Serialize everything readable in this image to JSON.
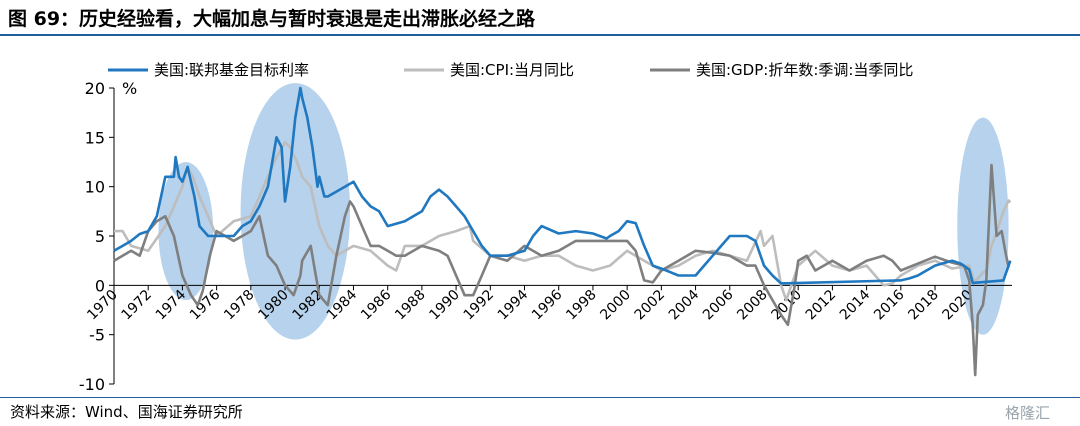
{
  "title": "图 69：历史经验看，大幅加息与暂时衰退是走出滞胀必经之路",
  "source": "资料来源：Wind、国海证券研究所",
  "watermark": "格隆汇",
  "colors": {
    "fed": "#1f78c0",
    "cpi": "#bdbdbd",
    "gdp": "#7f7f7f",
    "ellipse": "#9dc3e6",
    "rule": "#1f5fa0"
  },
  "chart_data": {
    "type": "line",
    "ylabel": "%",
    "ylim": [
      -10,
      20
    ],
    "yticks": [
      "-10",
      "-5",
      "0",
      "5",
      "10",
      "15",
      "20"
    ],
    "xlim": [
      1970,
      2022.5
    ],
    "xticks": [
      "1970",
      "1972",
      "1974",
      "1976",
      "1978",
      "1980",
      "1982",
      "1984",
      "1986",
      "1988",
      "1990",
      "1992",
      "1994",
      "1996",
      "1998",
      "2000",
      "2002",
      "2004",
      "2006",
      "2008",
      "2010",
      "2012",
      "2014",
      "2016",
      "2018",
      "2020"
    ],
    "legend_position": "top",
    "highlights": [
      {
        "x_center": 1974.2,
        "y_center": 5.5,
        "x_half_width": 1.6,
        "y_half_height": 7
      },
      {
        "x_center": 1980.6,
        "y_center": 7.5,
        "x_half_width": 3.2,
        "y_half_height": 13
      },
      {
        "x_center": 2020.8,
        "y_center": 6.0,
        "x_half_width": 1.5,
        "y_half_height": 11
      }
    ],
    "series": [
      {
        "name": "美国:联邦基金目标利率",
        "color_key": "fed",
        "points": [
          [
            1970,
            3.5
          ],
          [
            1970.5,
            4
          ],
          [
            1971,
            4.5
          ],
          [
            1971.5,
            5.2
          ],
          [
            1972,
            5.5
          ],
          [
            1972.5,
            7
          ],
          [
            1973,
            11
          ],
          [
            1973.5,
            11
          ],
          [
            1973.6,
            13
          ],
          [
            1973.8,
            11
          ],
          [
            1974,
            10.5
          ],
          [
            1974.3,
            12
          ],
          [
            1974.7,
            9
          ],
          [
            1975,
            6
          ],
          [
            1975.5,
            5
          ],
          [
            1976,
            5
          ],
          [
            1977,
            5
          ],
          [
            1977.5,
            6
          ],
          [
            1978,
            6.5
          ],
          [
            1978.5,
            8
          ],
          [
            1979,
            10
          ],
          [
            1979.2,
            12
          ],
          [
            1979.5,
            15
          ],
          [
            1979.8,
            14
          ],
          [
            1980,
            8.5
          ],
          [
            1980.3,
            12
          ],
          [
            1980.6,
            17
          ],
          [
            1980.9,
            20
          ],
          [
            1981,
            19
          ],
          [
            1981.3,
            17
          ],
          [
            1981.6,
            14
          ],
          [
            1981.9,
            10
          ],
          [
            1982,
            11
          ],
          [
            1982.3,
            9
          ],
          [
            1982.5,
            9
          ],
          [
            1983,
            9.5
          ],
          [
            1983.5,
            10
          ],
          [
            1984,
            10.5
          ],
          [
            1984.5,
            9
          ],
          [
            1985,
            8
          ],
          [
            1985.5,
            7.5
          ],
          [
            1986,
            6
          ],
          [
            1987,
            6.5
          ],
          [
            1987.5,
            7
          ],
          [
            1988,
            7.5
          ],
          [
            1988.5,
            9
          ],
          [
            1989,
            9.7
          ],
          [
            1989.5,
            9
          ],
          [
            1990,
            8
          ],
          [
            1990.5,
            7
          ],
          [
            1991,
            5.5
          ],
          [
            1991.5,
            4
          ],
          [
            1992,
            3
          ],
          [
            1993,
            3
          ],
          [
            1994,
            3.5
          ],
          [
            1994.5,
            5
          ],
          [
            1995,
            6
          ],
          [
            1996,
            5.25
          ],
          [
            1997,
            5.5
          ],
          [
            1998,
            5.25
          ],
          [
            1998.8,
            4.75
          ],
          [
            1999,
            5
          ],
          [
            1999.5,
            5.5
          ],
          [
            2000,
            6.5
          ],
          [
            2000.5,
            6.3
          ],
          [
            2001,
            4
          ],
          [
            2001.5,
            2
          ],
          [
            2002,
            1.7
          ],
          [
            2003,
            1
          ],
          [
            2004,
            1
          ],
          [
            2004.5,
            2
          ],
          [
            2005,
            3
          ],
          [
            2005.5,
            4
          ],
          [
            2006,
            5
          ],
          [
            2007,
            5
          ],
          [
            2007.5,
            4.5
          ],
          [
            2008,
            2
          ],
          [
            2008.5,
            1
          ],
          [
            2009,
            0.2
          ],
          [
            2015.9,
            0.5
          ],
          [
            2016,
            0.5
          ],
          [
            2016.5,
            0.7
          ],
          [
            2017,
            1
          ],
          [
            2017.5,
            1.5
          ],
          [
            2018,
            2
          ],
          [
            2018.5,
            2.25
          ],
          [
            2019,
            2.5
          ],
          [
            2019.5,
            2.2
          ],
          [
            2020,
            1.6
          ],
          [
            2020.2,
            0.25
          ],
          [
            2022,
            0.5
          ],
          [
            2022.2,
            1.5
          ],
          [
            2022.4,
            2.5
          ]
        ]
      },
      {
        "name": "美国:CPI:当月同比",
        "color_key": "cpi",
        "points": [
          [
            1970,
            5.5
          ],
          [
            1970.5,
            5.5
          ],
          [
            1971,
            4
          ],
          [
            1972,
            3.5
          ],
          [
            1973,
            6
          ],
          [
            1973.5,
            8
          ],
          [
            1974,
            10
          ],
          [
            1974.3,
            12
          ],
          [
            1974.6,
            11
          ],
          [
            1975,
            9
          ],
          [
            1975.5,
            7
          ],
          [
            1976,
            5
          ],
          [
            1977,
            6.5
          ],
          [
            1978,
            7
          ],
          [
            1978.5,
            9
          ],
          [
            1979,
            11
          ],
          [
            1979.5,
            13
          ],
          [
            1980,
            14.5
          ],
          [
            1980.3,
            14
          ],
          [
            1980.7,
            12.5
          ],
          [
            1981,
            11
          ],
          [
            1981.5,
            10
          ],
          [
            1982,
            6
          ],
          [
            1982.5,
            4
          ],
          [
            1983,
            3
          ],
          [
            1983.5,
            3.5
          ],
          [
            1984,
            4
          ],
          [
            1985,
            3.5
          ],
          [
            1986,
            2
          ],
          [
            1986.5,
            1.5
          ],
          [
            1987,
            4
          ],
          [
            1988,
            4
          ],
          [
            1989,
            5
          ],
          [
            1990,
            5.5
          ],
          [
            1990.8,
            6
          ],
          [
            1991,
            4.5
          ],
          [
            1992,
            3
          ],
          [
            1993,
            3
          ],
          [
            1994,
            2.5
          ],
          [
            1995,
            3
          ],
          [
            1996,
            3
          ],
          [
            1997,
            2
          ],
          [
            1998,
            1.5
          ],
          [
            1999,
            2
          ],
          [
            2000,
            3.5
          ],
          [
            2001,
            2.5
          ],
          [
            2002,
            1.5
          ],
          [
            2003,
            2
          ],
          [
            2004,
            3
          ],
          [
            2005,
            3.5
          ],
          [
            2006,
            3
          ],
          [
            2007,
            2.5
          ],
          [
            2007.8,
            5.5
          ],
          [
            2008,
            4
          ],
          [
            2008.5,
            5
          ],
          [
            2009,
            0
          ],
          [
            2009.3,
            -1.5
          ],
          [
            2009.8,
            1
          ],
          [
            2010,
            2
          ],
          [
            2011,
            3.5
          ],
          [
            2012,
            2
          ],
          [
            2013,
            1.5
          ],
          [
            2014,
            2
          ],
          [
            2015,
            0
          ],
          [
            2015.5,
            0.2
          ],
          [
            2016,
            1
          ],
          [
            2017,
            2
          ],
          [
            2018,
            2.5
          ],
          [
            2019,
            1.7
          ],
          [
            2020,
            2
          ],
          [
            2020.3,
            0.3
          ],
          [
            2020.8,
            1.3
          ],
          [
            2021,
            1.5
          ],
          [
            2021.3,
            4
          ],
          [
            2021.6,
            5.4
          ],
          [
            2022,
            7.5
          ],
          [
            2022.3,
            8.6
          ],
          [
            2022.4,
            8.4
          ]
        ]
      },
      {
        "name": "美国:GDP:折年数:季调:当季同比",
        "color_key": "gdp",
        "points": [
          [
            1970,
            2.5
          ],
          [
            1970.5,
            3
          ],
          [
            1971,
            3.5
          ],
          [
            1971.5,
            3
          ],
          [
            1972,
            5.5
          ],
          [
            1972.5,
            6.5
          ],
          [
            1973,
            7
          ],
          [
            1973.5,
            5
          ],
          [
            1974,
            1
          ],
          [
            1974.5,
            -1
          ],
          [
            1974.9,
            -2
          ],
          [
            1975.2,
            -0.5
          ],
          [
            1975.6,
            3
          ],
          [
            1976,
            5.5
          ],
          [
            1976.5,
            5
          ],
          [
            1977,
            4.5
          ],
          [
            1977.5,
            5
          ],
          [
            1978,
            5.5
          ],
          [
            1978.5,
            7
          ],
          [
            1979,
            3
          ],
          [
            1979.5,
            2
          ],
          [
            1980,
            0
          ],
          [
            1980.5,
            -1
          ],
          [
            1980.9,
            1
          ],
          [
            1981,
            2.5
          ],
          [
            1981.5,
            4
          ],
          [
            1981.8,
            1
          ],
          [
            1982,
            -1
          ],
          [
            1982.5,
            -2
          ],
          [
            1983,
            3
          ],
          [
            1983.5,
            7
          ],
          [
            1983.8,
            8.5
          ],
          [
            1984,
            8
          ],
          [
            1984.5,
            6
          ],
          [
            1985,
            4
          ],
          [
            1985.5,
            4
          ],
          [
            1986,
            3.5
          ],
          [
            1986.5,
            3
          ],
          [
            1987,
            3
          ],
          [
            1988,
            4
          ],
          [
            1989,
            3.5
          ],
          [
            1989.5,
            3
          ],
          [
            1990,
            1
          ],
          [
            1990.5,
            -1
          ],
          [
            1991,
            -1
          ],
          [
            1991.5,
            1
          ],
          [
            1992,
            3
          ],
          [
            1993,
            2.5
          ],
          [
            1994,
            4
          ],
          [
            1995,
            3
          ],
          [
            1996,
            3.5
          ],
          [
            1997,
            4.5
          ],
          [
            1998,
            4.5
          ],
          [
            1999,
            4.5
          ],
          [
            2000,
            4.5
          ],
          [
            2000.5,
            3.5
          ],
          [
            2001,
            0.5
          ],
          [
            2001.5,
            0.3
          ],
          [
            2002,
            1.5
          ],
          [
            2003,
            2.5
          ],
          [
            2004,
            3.5
          ],
          [
            2005,
            3.3
          ],
          [
            2006,
            3
          ],
          [
            2007,
            2
          ],
          [
            2007.5,
            2
          ],
          [
            2008,
            0
          ],
          [
            2008.5,
            -1.5
          ],
          [
            2009,
            -3
          ],
          [
            2009.4,
            -4
          ],
          [
            2009.8,
            0
          ],
          [
            2010,
            2.5
          ],
          [
            2010.5,
            3
          ],
          [
            2011,
            1.5
          ],
          [
            2012,
            2.5
          ],
          [
            2013,
            1.5
          ],
          [
            2014,
            2.5
          ],
          [
            2015,
            3
          ],
          [
            2015.5,
            2.5
          ],
          [
            2016,
            1.5
          ],
          [
            2017,
            2.2
          ],
          [
            2018,
            2.9
          ],
          [
            2019,
            2.3
          ],
          [
            2019.7,
            2
          ],
          [
            2020,
            0.5
          ],
          [
            2020.2,
            -4
          ],
          [
            2020.35,
            -9.1
          ],
          [
            2020.5,
            -3
          ],
          [
            2020.8,
            -2
          ],
          [
            2021,
            0.5
          ],
          [
            2021.3,
            12.2
          ],
          [
            2021.6,
            5
          ],
          [
            2021.9,
            5.5
          ],
          [
            2022.1,
            3.5
          ],
          [
            2022.3,
            1.8
          ]
        ]
      }
    ]
  }
}
